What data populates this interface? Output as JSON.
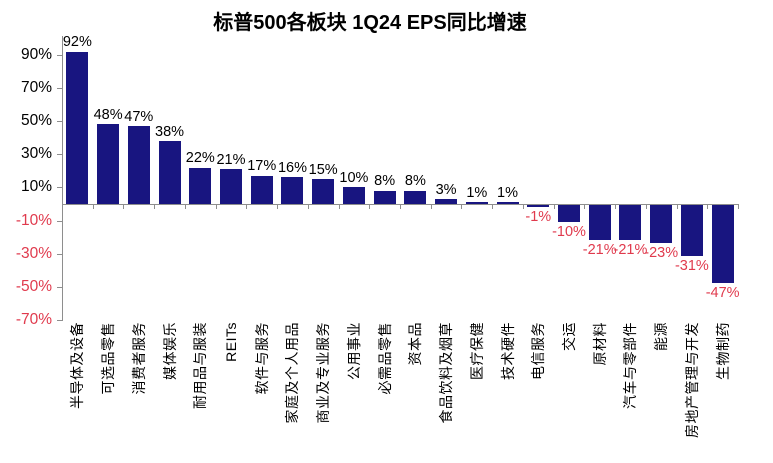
{
  "title": "标普500各板块 1Q24 EPS同比增速",
  "chart_data": {
    "type": "bar",
    "title": "标普500各板块 1Q24 EPS同比增速",
    "categories": [
      "半导体及设备",
      "可选品零售",
      "消费者服务",
      "媒体娱乐",
      "耐用品与服装",
      "REITs",
      "软件与服务",
      "家庭及个人用品",
      "商业及专业服务",
      "公用事业",
      "必需品零售",
      "资本品",
      "食品饮料及烟草",
      "医疗保健",
      "技术硬件",
      "电信服务",
      "交运",
      "原材料",
      "汽车与零部件",
      "能源",
      "房地产管理与开发",
      "生物制药"
    ],
    "values": [
      92,
      48,
      47,
      38,
      22,
      21,
      17,
      16,
      15,
      10,
      8,
      8,
      3,
      1,
      1,
      -1,
      -10,
      -21,
      -21,
      -23,
      -31,
      -47
    ],
    "value_labels": [
      "92%",
      "48%",
      "47%",
      "38%",
      "22%",
      "21%",
      "17%",
      "16%",
      "15%",
      "10%",
      "8%",
      "8%",
      "3%",
      "1%",
      "1%",
      "-1%",
      "-10%",
      "-21%",
      "-21%",
      "-23%",
      "-31%",
      "-47%"
    ],
    "unit": "%",
    "xlabel": "",
    "ylabel": "",
    "ylim": [
      -70,
      100
    ],
    "yticks": [
      90,
      70,
      50,
      30,
      10,
      -10,
      -30,
      -50,
      -70
    ],
    "ytick_labels": [
      "90%",
      "70%",
      "50%",
      "30%",
      "10%",
      "-10%",
      "-30%",
      "-50%",
      "-70%"
    ],
    "grid": false,
    "legend": "none",
    "colors": {
      "bar": "#181580",
      "positive_text": "#000000",
      "negative_text": "#E03A4D",
      "axis": "#8E8E8E"
    }
  }
}
